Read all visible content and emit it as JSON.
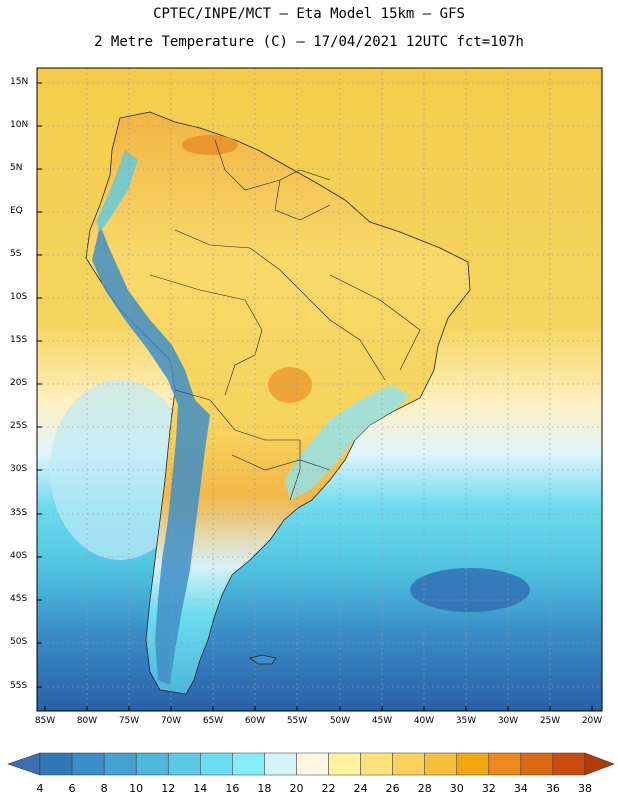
{
  "header": {
    "line1": "CPTEC/INPE/MCT –  Eta Model 15km – GFS",
    "line2": "2 Metre Temperature (C) – 17/04/2021 12UTC fct=107h"
  },
  "axes": {
    "lat_labels": [
      "15N",
      "10N",
      "5N",
      "EQ",
      "5S",
      "10S",
      "15S",
      "20S",
      "25S",
      "30S",
      "35S",
      "40S",
      "45S",
      "50S",
      "55S"
    ],
    "lon_labels": [
      "85W",
      "80W",
      "75W",
      "70W",
      "65W",
      "60W",
      "55W",
      "50W",
      "45W",
      "40W",
      "35W",
      "30W",
      "25W",
      "20W"
    ]
  },
  "legend": {
    "labels": [
      "4",
      "6",
      "8",
      "10",
      "12",
      "14",
      "16",
      "18",
      "20",
      "22",
      "24",
      "26",
      "28",
      "30",
      "32",
      "34",
      "36",
      "38"
    ],
    "colors": [
      "#2a5fa7",
      "#3178b8",
      "#3a8dc6",
      "#44a1d2",
      "#4fb6dc",
      "#5bc9e4",
      "#6ddcee",
      "#86ecf7",
      "#d4f4fb",
      "#fff7e2",
      "#fff2a0",
      "#ffe27a",
      "#fbd25f",
      "#f4c03e",
      "#f2a813",
      "#ea8a21",
      "#db6a15",
      "#c84d0e",
      "#b63a06"
    ]
  },
  "map_colors": {
    "land_warm": "#f7d35c",
    "land_hot": "#f0b240",
    "ocean_tropic": "#f5d251",
    "ocean_mid": "#4fc3e0",
    "ocean_south": "#2c64ab",
    "andes": "#3f8ec7"
  }
}
